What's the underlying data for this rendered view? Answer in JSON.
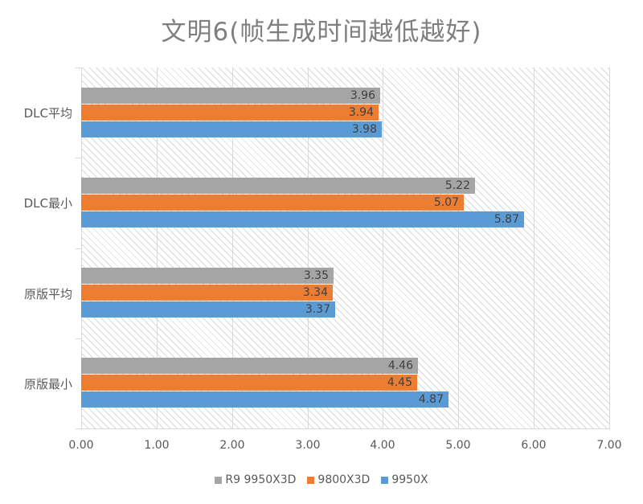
{
  "chart_data": {
    "type": "bar",
    "orientation": "horizontal",
    "title": "文明6(帧生成时间越低越好)",
    "xlabel": "",
    "ylabel": "",
    "xlim": [
      0,
      7
    ],
    "x_ticks": [
      "0.00",
      "1.00",
      "2.00",
      "3.00",
      "4.00",
      "5.00",
      "6.00",
      "7.00"
    ],
    "categories": [
      "DLC平均",
      "DLC最小",
      "原版平均",
      "原版最小"
    ],
    "series": [
      {
        "name": "R9 9950X3D",
        "color": "#a5a5a5",
        "values": [
          3.96,
          5.22,
          3.35,
          4.46
        ]
      },
      {
        "name": "9800X3D",
        "color": "#ed7d31",
        "values": [
          3.94,
          5.07,
          3.34,
          4.45
        ]
      },
      {
        "name": "9950X",
        "color": "#5b9bd5",
        "values": [
          3.98,
          5.87,
          3.37,
          4.87
        ]
      }
    ],
    "grid": true,
    "legend_position": "bottom",
    "data_labels": true
  },
  "labels": {
    "title": "文明6(帧生成时间越低越好)",
    "categories": [
      "DLC平均",
      "DLC最小",
      "原版平均",
      "原版最小"
    ],
    "ticks": [
      "0.00",
      "1.00",
      "2.00",
      "3.00",
      "4.00",
      "5.00",
      "6.00",
      "7.00"
    ],
    "legend": [
      "R9 9950X3D",
      "9800X3D",
      "9950X"
    ],
    "bars": {
      "c0": [
        "3.96",
        "3.94",
        "3.98"
      ],
      "c1": [
        "5.22",
        "5.07",
        "5.87"
      ],
      "c2": [
        "3.35",
        "3.34",
        "3.37"
      ],
      "c3": [
        "4.46",
        "4.45",
        "4.87"
      ]
    }
  },
  "colors": {
    "r9_9950x3d": "#a5a5a5",
    "9800x3d": "#ed7d31",
    "9950x": "#5b9bd5"
  }
}
